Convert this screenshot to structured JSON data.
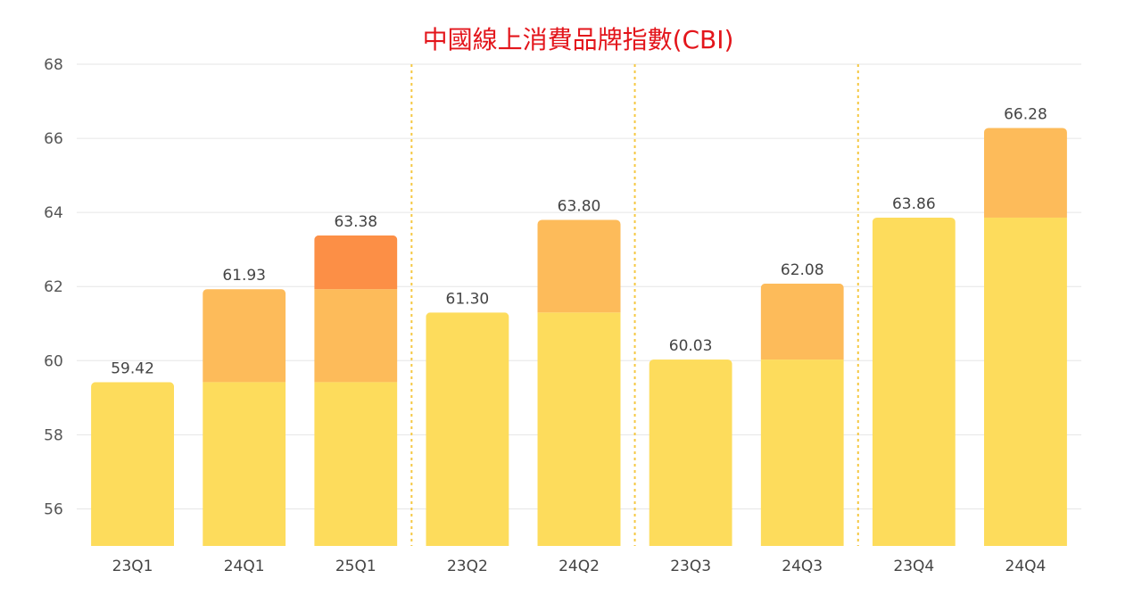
{
  "chart_data": {
    "type": "bar",
    "title": "中國線上消費品牌指數(CBI)",
    "xlabel": "",
    "ylabel": "",
    "ylim": [
      55,
      68
    ],
    "yticks": [
      56,
      58,
      60,
      62,
      64,
      66,
      68
    ],
    "grid": true,
    "categories": [
      "23Q1",
      "24Q1",
      "25Q1",
      "23Q2",
      "24Q2",
      "23Q3",
      "24Q3",
      "23Q4",
      "24Q4"
    ],
    "values": [
      59.42,
      61.93,
      63.38,
      61.3,
      63.8,
      60.03,
      62.08,
      63.86,
      66.28
    ],
    "value_labels": [
      "59.42",
      "61.93",
      "63.38",
      "61.30",
      "63.80",
      "60.03",
      "62.08",
      "63.86",
      "66.28"
    ],
    "segments": [
      [
        59.42
      ],
      [
        59.42,
        61.93
      ],
      [
        59.42,
        61.93,
        63.38
      ],
      [
        61.3
      ],
      [
        61.3,
        63.8
      ],
      [
        60.03
      ],
      [
        60.03,
        62.08
      ],
      [
        63.86
      ],
      [
        63.86,
        66.28
      ]
    ],
    "groups": [
      {
        "categories": [
          "23Q1",
          "24Q1",
          "25Q1"
        ]
      },
      {
        "categories": [
          "23Q2",
          "24Q2"
        ]
      },
      {
        "categories": [
          "23Q3",
          "24Q3"
        ]
      },
      {
        "categories": [
          "23Q4",
          "24Q4"
        ]
      }
    ],
    "colors": {
      "base": "#fddc5c",
      "increase1": "#fdbb5a",
      "increase2": "#fc8f46",
      "title": "#e3151b",
      "separator": "#f5c842"
    }
  }
}
